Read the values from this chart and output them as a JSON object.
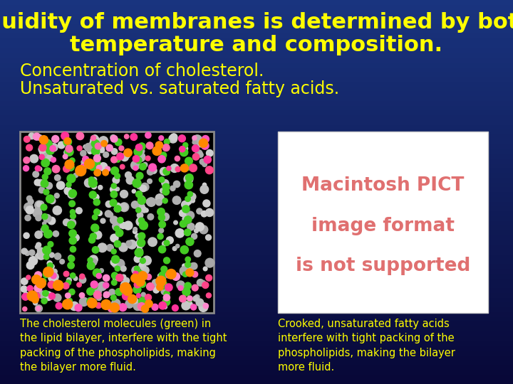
{
  "title_line1": "Fluidity of membranes is determined by both",
  "title_line2": "temperature and composition.",
  "title_color": "#FFFF00",
  "title_fontsize": 22,
  "bullet1": "Concentration of cholesterol.",
  "bullet2": "Unsaturated vs. saturated fatty acids.",
  "bullet_color": "#FFFF00",
  "bullet_fontsize": 17,
  "caption_left": "The cholesterol molecules (green) in\nthe lipid bilayer, interfere with the tight\npacking of the phospholipids, making\nthe bilayer more fluid.",
  "caption_right": "Crooked, unsaturated fatty acids\ninterfere with tight packing of the\nphospholipids, making the bilayer\nmore fluid.",
  "caption_color": "#FFFF00",
  "caption_fontsize": 10.5,
  "left_image_bg": "#000000",
  "right_image_bg": "#ffffff",
  "pict_text_line1": "Macintosh PICT",
  "pict_text_line2": "image format",
  "pict_text_line3": "is not supported",
  "pict_text_color": "#e07070",
  "pict_fontsize": 19
}
